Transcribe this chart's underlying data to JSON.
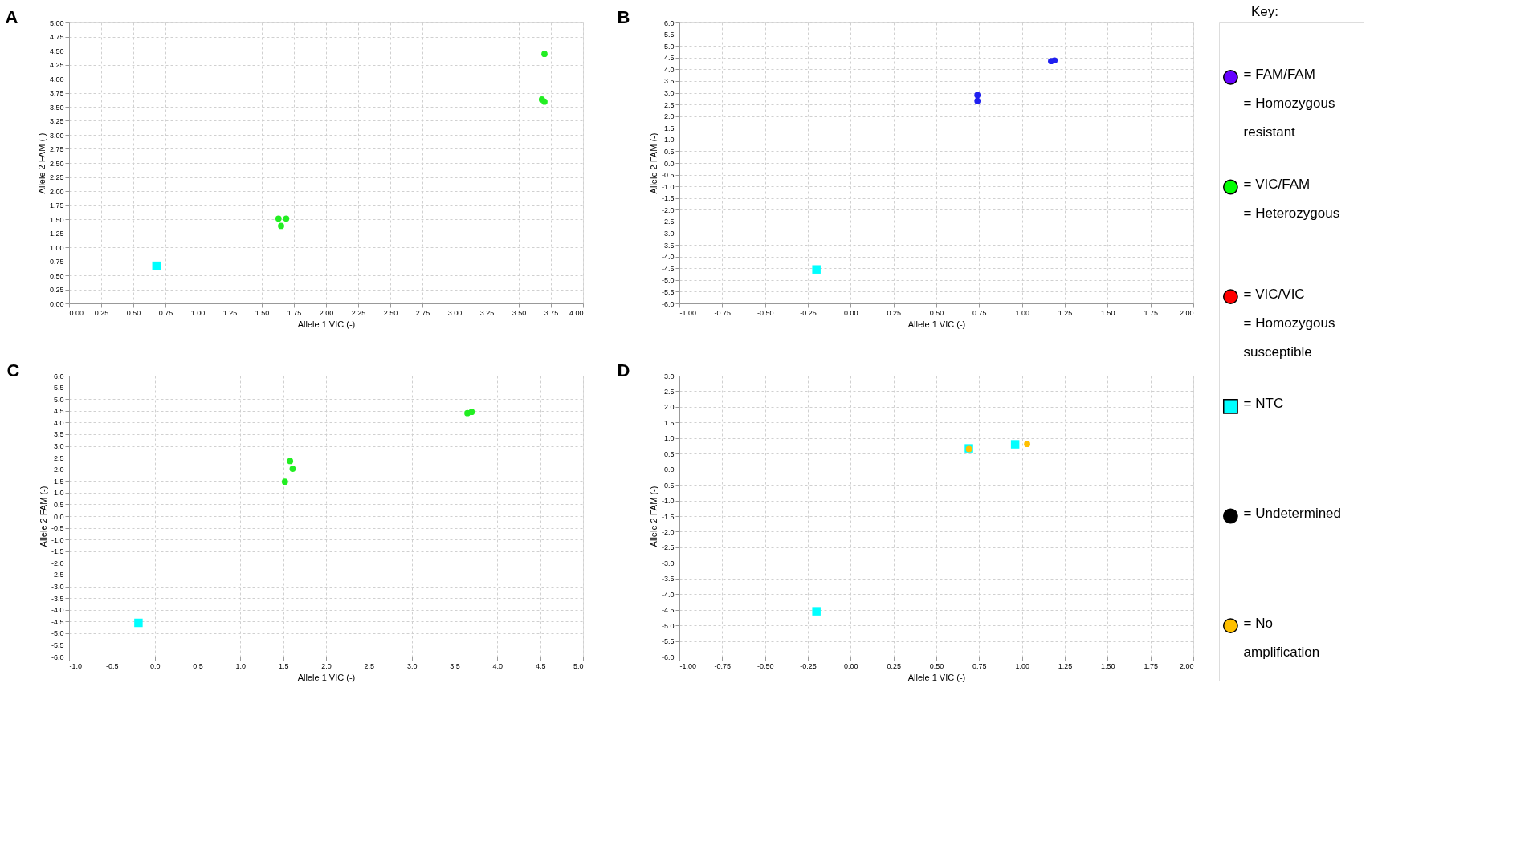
{
  "chart_data": [
    {
      "type": "scatter",
      "title": "A",
      "xlabel": "Allele 1 VIC (-)",
      "ylabel": "Allele 2 FAM (-)",
      "grid": true,
      "marker": "circle",
      "xlim": [
        0,
        4
      ],
      "ylim": [
        0,
        5
      ],
      "xticks": [
        {
          "value": 0,
          "label": "0.00"
        },
        {
          "value": 0.25,
          "label": "0.25"
        },
        {
          "value": 0.5,
          "label": "0.50"
        },
        {
          "value": 0.75,
          "label": "0.75"
        },
        {
          "value": 1,
          "label": "1.00"
        },
        {
          "value": 1.25,
          "label": "1.25"
        },
        {
          "value": 1.5,
          "label": "1.50"
        },
        {
          "value": 1.75,
          "label": "1.75"
        },
        {
          "value": 2,
          "label": "2.00"
        },
        {
          "value": 2.25,
          "label": "2.25"
        },
        {
          "value": 2.5,
          "label": "2.50"
        },
        {
          "value": 2.75,
          "label": "2.75"
        },
        {
          "value": 3,
          "label": "3.00"
        },
        {
          "value": 3.25,
          "label": "3.25"
        },
        {
          "value": 3.5,
          "label": "3.50"
        },
        {
          "value": 3.75,
          "label": "3.75"
        },
        {
          "value": 4,
          "label": "4.00"
        }
      ],
      "yticks": [
        {
          "value": 0,
          "label": "0.00"
        },
        {
          "value": 0.25,
          "label": "0.25"
        },
        {
          "value": 0.5,
          "label": "0.50"
        },
        {
          "value": 0.75,
          "label": "0.75"
        },
        {
          "value": 1,
          "label": "1.00"
        },
        {
          "value": 1.25,
          "label": "1.25"
        },
        {
          "value": 1.5,
          "label": "1.50"
        },
        {
          "value": 1.75,
          "label": "1.75"
        },
        {
          "value": 2,
          "label": "2.00"
        },
        {
          "value": 2.25,
          "label": "2.25"
        },
        {
          "value": 2.5,
          "label": "2.50"
        },
        {
          "value": 2.75,
          "label": "2.75"
        },
        {
          "value": 3,
          "label": "3.00"
        },
        {
          "value": 3.25,
          "label": "3.25"
        },
        {
          "value": 3.5,
          "label": "3.50"
        },
        {
          "value": 3.75,
          "label": "3.75"
        },
        {
          "value": 4,
          "label": "4.00"
        },
        {
          "value": 4.25,
          "label": "4.25"
        },
        {
          "value": 4.5,
          "label": "4.50"
        },
        {
          "value": 4.75,
          "label": "4.75"
        },
        {
          "value": 5,
          "label": "5.00"
        }
      ],
      "series": [
        {
          "color": "#00ffff",
          "marker": "square",
          "x": [
            0.68
          ],
          "values": [
            0.67
          ]
        },
        {
          "color": "#22ee22",
          "x": [
            1.63,
            1.69,
            1.65,
            3.7,
            3.68,
            3.7
          ],
          "values": [
            1.51,
            1.51,
            1.38,
            4.44,
            3.63,
            3.59
          ]
        }
      ]
    },
    {
      "type": "scatter",
      "title": "B",
      "xlabel": "Allele 1 VIC (-)",
      "ylabel": "Allele 2 FAM (-)",
      "grid": true,
      "marker": "circle",
      "xlim": [
        -1,
        2
      ],
      "ylim": [
        -6,
        6
      ],
      "xticks": [
        {
          "value": -1,
          "label": "-1.00"
        },
        {
          "value": -0.75,
          "label": "-0.75"
        },
        {
          "value": -0.5,
          "label": "-0.50"
        },
        {
          "value": -0.25,
          "label": "-0.25"
        },
        {
          "value": 0,
          "label": "0.00"
        },
        {
          "value": 0.25,
          "label": "0.25"
        },
        {
          "value": 0.5,
          "label": "0.50"
        },
        {
          "value": 0.75,
          "label": "0.75"
        },
        {
          "value": 1,
          "label": "1.00"
        },
        {
          "value": 1.25,
          "label": "1.25"
        },
        {
          "value": 1.5,
          "label": "1.50"
        },
        {
          "value": 1.75,
          "label": "1.75"
        },
        {
          "value": 2,
          "label": "2.00"
        }
      ],
      "yticks": [
        {
          "value": -6,
          "label": "-6.0"
        },
        {
          "value": -5.5,
          "label": "-5.5"
        },
        {
          "value": -5,
          "label": "-5.0"
        },
        {
          "value": -4.5,
          "label": "-4.5"
        },
        {
          "value": -4,
          "label": "-4.0"
        },
        {
          "value": -3.5,
          "label": "-3.5"
        },
        {
          "value": -3,
          "label": "-3.0"
        },
        {
          "value": -2.5,
          "label": "-2.5"
        },
        {
          "value": -2,
          "label": "-2.0"
        },
        {
          "value": -1.5,
          "label": "-1.5"
        },
        {
          "value": -1,
          "label": "-1.0"
        },
        {
          "value": -0.5,
          "label": "-0.5"
        },
        {
          "value": 0,
          "label": "0.0"
        },
        {
          "value": 0.5,
          "label": "0.5"
        },
        {
          "value": 1,
          "label": "1.0"
        },
        {
          "value": 1.5,
          "label": "1.5"
        },
        {
          "value": 2,
          "label": "2.0"
        },
        {
          "value": 2.5,
          "label": "2.5"
        },
        {
          "value": 3,
          "label": "3.0"
        },
        {
          "value": 3.5,
          "label": "3.5"
        },
        {
          "value": 4,
          "label": "4.0"
        },
        {
          "value": 4.5,
          "label": "4.5"
        },
        {
          "value": 5,
          "label": "5.0"
        },
        {
          "value": 5.5,
          "label": "5.5"
        },
        {
          "value": 6,
          "label": "6.0"
        }
      ],
      "series": [
        {
          "color": "#00ffff",
          "marker": "square",
          "x": [
            -0.2
          ],
          "values": [
            -4.55
          ]
        },
        {
          "color": "#2020f0",
          "x": [
            0.74,
            0.74,
            1.17,
            1.19
          ],
          "values": [
            2.9,
            2.65,
            4.35,
            4.38
          ]
        }
      ]
    },
    {
      "type": "scatter",
      "title": "C",
      "xlabel": "Allele 1 VIC (-)",
      "ylabel": "Allele 2 FAM (-)",
      "grid": true,
      "marker": "circle",
      "xlim": [
        -1,
        5
      ],
      "ylim": [
        -6,
        6
      ],
      "xticks": [
        {
          "value": -1,
          "label": "-1.0"
        },
        {
          "value": -0.5,
          "label": "-0.5"
        },
        {
          "value": 0,
          "label": "0.0"
        },
        {
          "value": 0.5,
          "label": "0.5"
        },
        {
          "value": 1,
          "label": "1.0"
        },
        {
          "value": 1.5,
          "label": "1.5"
        },
        {
          "value": 2,
          "label": "2.0"
        },
        {
          "value": 2.5,
          "label": "2.5"
        },
        {
          "value": 3,
          "label": "3.0"
        },
        {
          "value": 3.5,
          "label": "3.5"
        },
        {
          "value": 4,
          "label": "4.0"
        },
        {
          "value": 4.5,
          "label": "4.5"
        },
        {
          "value": 5,
          "label": "5.0"
        }
      ],
      "yticks": [
        {
          "value": -6,
          "label": "-6.0"
        },
        {
          "value": -5.5,
          "label": "-5.5"
        },
        {
          "value": -5,
          "label": "-5.0"
        },
        {
          "value": -4.5,
          "label": "-4.5"
        },
        {
          "value": -4,
          "label": "-4.0"
        },
        {
          "value": -3.5,
          "label": "-3.5"
        },
        {
          "value": -3,
          "label": "-3.0"
        },
        {
          "value": -2.5,
          "label": "-2.5"
        },
        {
          "value": -2,
          "label": "-2.0"
        },
        {
          "value": -1.5,
          "label": "-1.5"
        },
        {
          "value": -1,
          "label": "-1.0"
        },
        {
          "value": -0.5,
          "label": "-0.5"
        },
        {
          "value": 0,
          "label": "0.0"
        },
        {
          "value": 0.5,
          "label": "0.5"
        },
        {
          "value": 1,
          "label": "1.0"
        },
        {
          "value": 1.5,
          "label": "1.5"
        },
        {
          "value": 2,
          "label": "2.0"
        },
        {
          "value": 2.5,
          "label": "2.5"
        },
        {
          "value": 3,
          "label": "3.0"
        },
        {
          "value": 3.5,
          "label": "3.5"
        },
        {
          "value": 4,
          "label": "4.0"
        },
        {
          "value": 4.5,
          "label": "4.5"
        },
        {
          "value": 5,
          "label": "5.0"
        },
        {
          "value": 5.5,
          "label": "5.5"
        },
        {
          "value": 6,
          "label": "6.0"
        }
      ],
      "series": [
        {
          "color": "#00ffff",
          "marker": "square",
          "x": [
            -0.19
          ],
          "values": [
            -4.56
          ]
        },
        {
          "color": "#22ee22",
          "x": [
            1.58,
            1.61,
            1.52,
            3.65,
            3.7
          ],
          "values": [
            2.35,
            2.02,
            1.47,
            4.4,
            4.45
          ]
        }
      ]
    },
    {
      "type": "scatter",
      "title": "D",
      "xlabel": "Allele 1 VIC (-)",
      "ylabel": "Allele 2 FAM (-)",
      "grid": true,
      "marker": "circle",
      "xlim": [
        -1,
        2
      ],
      "ylim": [
        -6,
        3
      ],
      "xticks": [
        {
          "value": -1,
          "label": "-1.00"
        },
        {
          "value": -0.75,
          "label": "-0.75"
        },
        {
          "value": -0.5,
          "label": "-0.50"
        },
        {
          "value": -0.25,
          "label": "-0.25"
        },
        {
          "value": 0,
          "label": "0.00"
        },
        {
          "value": 0.25,
          "label": "0.25"
        },
        {
          "value": 0.5,
          "label": "0.50"
        },
        {
          "value": 0.75,
          "label": "0.75"
        },
        {
          "value": 1,
          "label": "1.00"
        },
        {
          "value": 1.25,
          "label": "1.25"
        },
        {
          "value": 1.5,
          "label": "1.50"
        },
        {
          "value": 1.75,
          "label": "1.75"
        },
        {
          "value": 2,
          "label": "2.00"
        }
      ],
      "yticks": [
        {
          "value": -6,
          "label": "-6.0"
        },
        {
          "value": -5.5,
          "label": "-5.5"
        },
        {
          "value": -5,
          "label": "-5.0"
        },
        {
          "value": -4.5,
          "label": "-4.5"
        },
        {
          "value": -4,
          "label": "-4.0"
        },
        {
          "value": -3.5,
          "label": "-3.5"
        },
        {
          "value": -3,
          "label": "-3.0"
        },
        {
          "value": -2.5,
          "label": "-2.5"
        },
        {
          "value": -2,
          "label": "-2.0"
        },
        {
          "value": -1.5,
          "label": "-1.5"
        },
        {
          "value": -1,
          "label": "-1.0"
        },
        {
          "value": -0.5,
          "label": "-0.5"
        },
        {
          "value": 0,
          "label": "0.0"
        },
        {
          "value": 0.5,
          "label": "0.5"
        },
        {
          "value": 1,
          "label": "1.0"
        },
        {
          "value": 1.5,
          "label": "1.5"
        },
        {
          "value": 2,
          "label": "2.0"
        },
        {
          "value": 2.5,
          "label": "2.5"
        },
        {
          "value": 3,
          "label": "3.0"
        }
      ],
      "series": [
        {
          "color": "#00ffff",
          "marker": "square",
          "x": [
            0.69,
            0.96,
            -0.2
          ],
          "values": [
            0.67,
            0.8,
            -4.55
          ]
        },
        {
          "color": "#ffc000",
          "x": [
            0.69,
            1.03
          ],
          "values": [
            0.65,
            0.81
          ]
        }
      ]
    },
    {
      "type": "other",
      "title": "Key:",
      "legend": "right",
      "series": [
        {
          "name": "= FAM/FAM\n= Homozygous\nresistant",
          "color": "#6600ff",
          "marker": "circle"
        },
        {
          "name": "= VIC/FAM\n= Heterozygous",
          "color": "#00ff00",
          "marker": "circle"
        },
        {
          "name": "= VIC/VIC\n= Homozygous\nsusceptible",
          "color": "#ff0000",
          "marker": "circle"
        },
        {
          "name": "= NTC",
          "color": "#00ffff",
          "marker": "square"
        },
        {
          "name": "= Undetermined",
          "color": "#000000",
          "marker": "circle"
        },
        {
          "name": "= No\namplification",
          "color": "#ffc000",
          "marker": "circle"
        }
      ]
    }
  ]
}
